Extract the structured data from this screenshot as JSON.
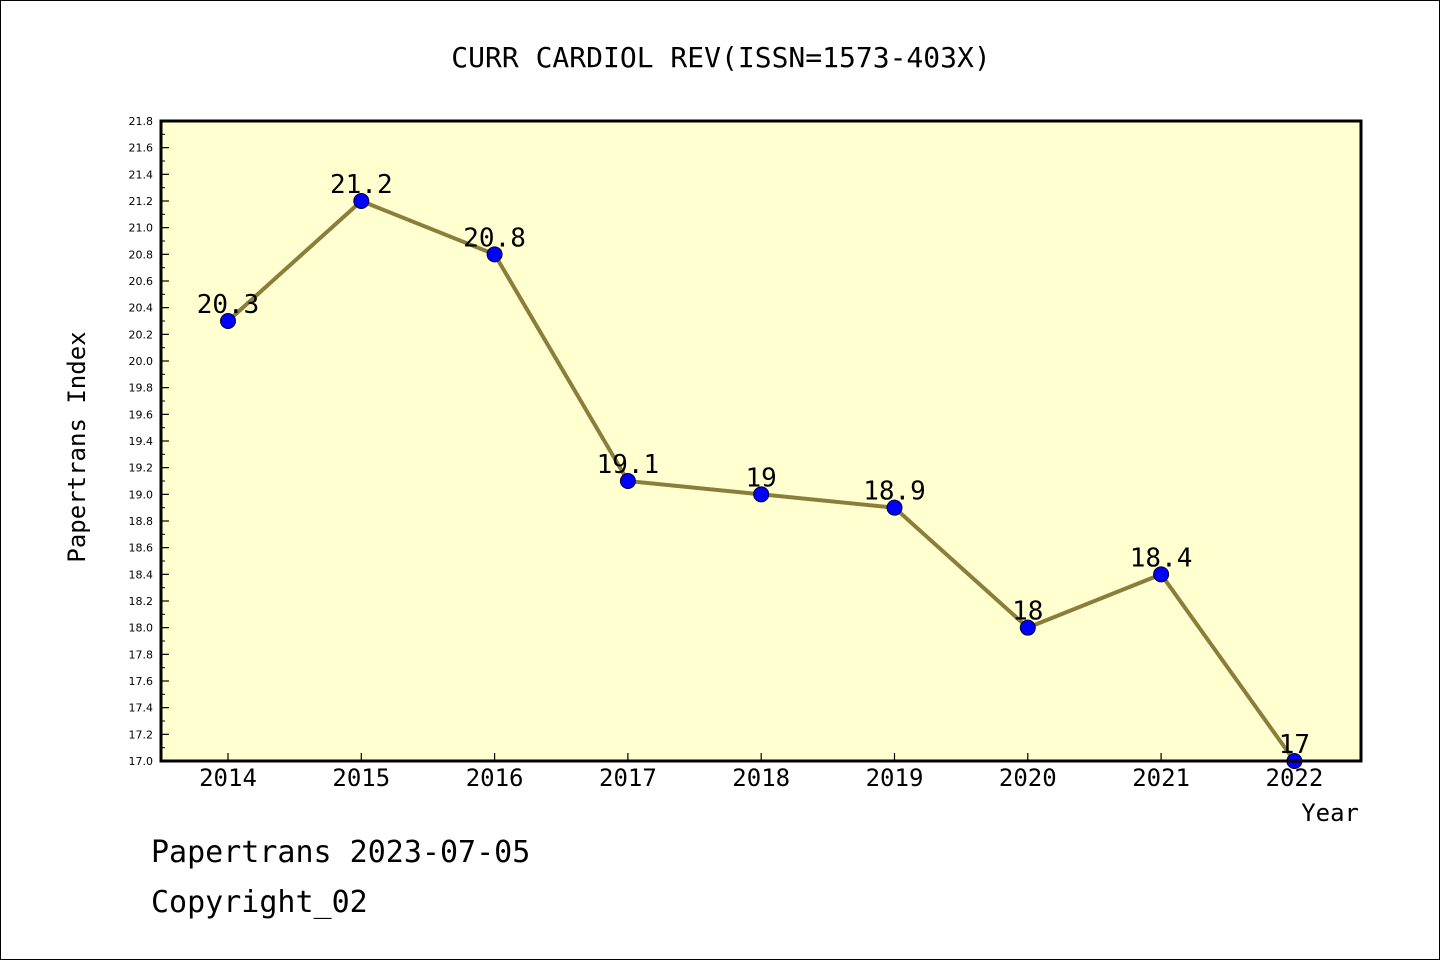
{
  "chart_data": {
    "type": "line",
    "title": "CURR CARDIOL REV(ISSN=1573-403X)",
    "xlabel": "Year",
    "ylabel": "Papertrans Index",
    "categories": [
      "2014",
      "2015",
      "2016",
      "2017",
      "2018",
      "2019",
      "2020",
      "2021",
      "2022"
    ],
    "values": [
      20.3,
      21.2,
      20.8,
      19.1,
      19.0,
      18.9,
      18.0,
      18.4,
      17.0
    ],
    "data_labels": [
      "20.3",
      "21.2",
      "20.8",
      "19.1",
      "19",
      "18.9",
      "18",
      "18.4",
      "17"
    ],
    "ylim": [
      17.0,
      21.8
    ],
    "yticks": [
      "17.0",
      "17.2",
      "17.4",
      "17.6",
      "17.8",
      "18.0",
      "18.2",
      "18.4",
      "18.6",
      "18.8",
      "19.0",
      "19.2",
      "19.4",
      "19.6",
      "19.8",
      "20.0",
      "20.2",
      "20.4",
      "20.6",
      "20.8",
      "21.0",
      "21.2",
      "21.4",
      "21.6",
      "21.8"
    ],
    "grid": false,
    "colors": {
      "plot_background": "#ffffd0",
      "line": "#8b7d3a",
      "marker": "#0000ff"
    }
  },
  "footer": {
    "line1": "Papertrans 2023-07-05",
    "line2": "Copyright_02"
  }
}
